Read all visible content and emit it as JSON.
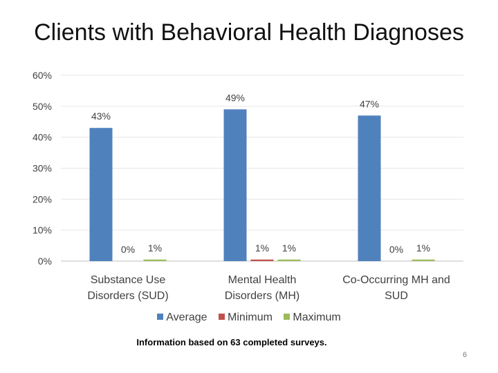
{
  "slide": {
    "footnote": "Information based on 63 completed surveys.",
    "page_number": "6"
  },
  "chart_data": {
    "type": "bar",
    "title": "Clients with Behavioral Health Diagnoses",
    "categories": [
      [
        "Substance Use",
        "Disorders (SUD)"
      ],
      [
        "Mental Health",
        "Disorders (MH)"
      ],
      [
        "Co-Occurring MH and",
        "SUD"
      ]
    ],
    "series": [
      {
        "name": "Average",
        "values": [
          43,
          49,
          47
        ],
        "labels": [
          "43%",
          "49%",
          "47%"
        ],
        "color": "#4f81bd"
      },
      {
        "name": "Minimum",
        "values": [
          0,
          0.5,
          0
        ],
        "labels": [
          "0%",
          "1%",
          "0%"
        ],
        "color": "#c0504d"
      },
      {
        "name": "Maximum",
        "values": [
          0.5,
          0.5,
          0.5
        ],
        "labels": [
          "1%",
          "1%",
          "1%"
        ],
        "color": "#9bbb59"
      }
    ],
    "y_ticks": [
      "0%",
      "10%",
      "20%",
      "30%",
      "40%",
      "50%",
      "60%"
    ],
    "ylim": [
      0,
      60
    ],
    "grid": true,
    "legend_position": "bottom"
  }
}
